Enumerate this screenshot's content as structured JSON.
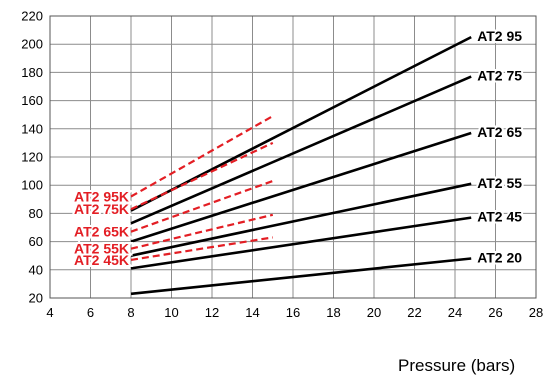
{
  "chart_data": {
    "type": "line",
    "title": "",
    "xlabel": "Pressure (bars)",
    "ylabel": "",
    "xlim": [
      4,
      28
    ],
    "ylim": [
      20,
      220
    ],
    "xticks": [
      4,
      6,
      8,
      10,
      12,
      14,
      16,
      18,
      20,
      22,
      24,
      26,
      28
    ],
    "yticks": [
      20,
      40,
      60,
      80,
      100,
      120,
      140,
      160,
      180,
      200,
      220
    ],
    "grid": true,
    "series": [
      {
        "name": "AT2 95",
        "color": "#000000",
        "style": "solid",
        "x": [
          8,
          24.8
        ],
        "y": [
          82,
          205
        ]
      },
      {
        "name": "AT2 75",
        "color": "#000000",
        "style": "solid",
        "x": [
          8,
          24.8
        ],
        "y": [
          73,
          177
        ]
      },
      {
        "name": "AT2 65",
        "color": "#000000",
        "style": "solid",
        "x": [
          8,
          24.8
        ],
        "y": [
          60,
          137
        ]
      },
      {
        "name": "AT2 55",
        "color": "#000000",
        "style": "solid",
        "x": [
          8,
          24.8
        ],
        "y": [
          50,
          101
        ]
      },
      {
        "name": "AT2 45",
        "color": "#000000",
        "style": "solid",
        "x": [
          8,
          24.8
        ],
        "y": [
          41,
          77
        ]
      },
      {
        "name": "AT2 20",
        "color": "#000000",
        "style": "solid",
        "x": [
          8,
          24.8
        ],
        "y": [
          23,
          48
        ]
      },
      {
        "name": "AT2 95K",
        "color": "#e31e24",
        "style": "dashed",
        "x": [
          8,
          15
        ],
        "y": [
          92,
          149
        ]
      },
      {
        "name": "AT2 75K",
        "color": "#e31e24",
        "style": "dashed",
        "x": [
          8,
          15
        ],
        "y": [
          83,
          130
        ]
      },
      {
        "name": "AT2 65K",
        "color": "#e31e24",
        "style": "dashed",
        "x": [
          8,
          15
        ],
        "y": [
          67,
          103
        ]
      },
      {
        "name": "AT2 55K",
        "color": "#e31e24",
        "style": "dashed",
        "x": [
          8,
          15
        ],
        "y": [
          55,
          79
        ]
      },
      {
        "name": "AT2 45K",
        "color": "#e31e24",
        "style": "dashed",
        "x": [
          8,
          15
        ],
        "y": [
          47,
          63
        ]
      }
    ]
  }
}
